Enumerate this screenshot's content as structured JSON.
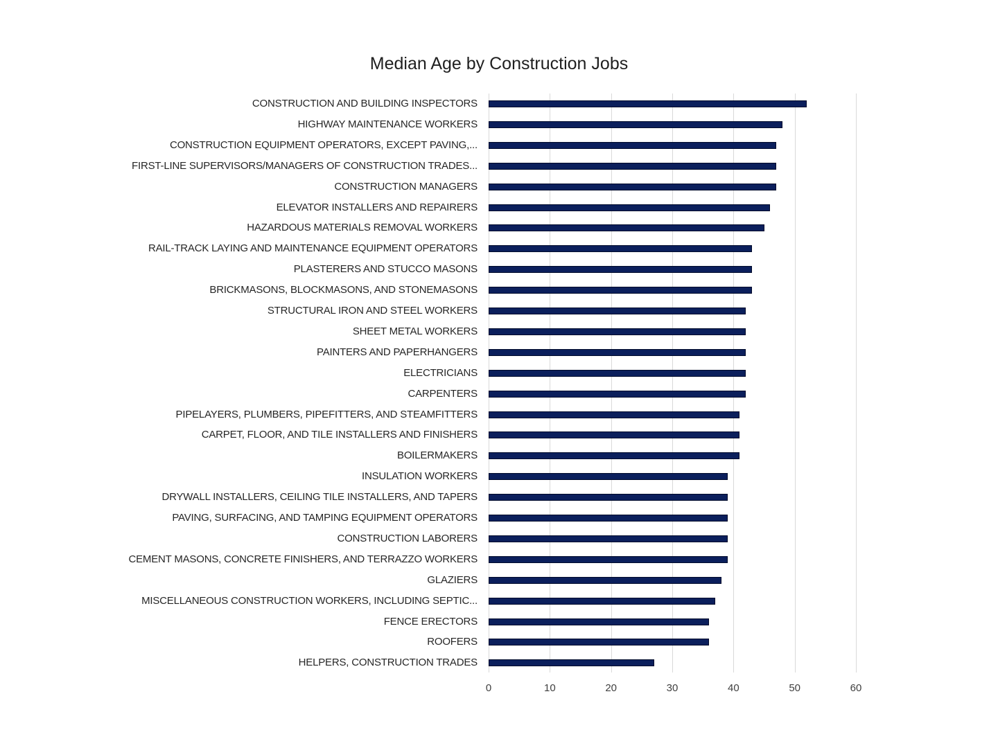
{
  "chart_data": {
    "type": "bar",
    "orientation": "horizontal",
    "title": "Median Age by Construction Jobs",
    "xlabel": "",
    "ylabel": "",
    "xlim": [
      0,
      60
    ],
    "x_ticks": [
      0,
      10,
      20,
      30,
      40,
      50,
      60
    ],
    "grid": "vertical",
    "legend": "none",
    "bar_color": "#0b1f5c",
    "categories": [
      "CONSTRUCTION AND BUILDING INSPECTORS",
      "HIGHWAY MAINTENANCE WORKERS",
      "CONSTRUCTION EQUIPMENT OPERATORS, EXCEPT PAVING,...",
      "FIRST-LINE SUPERVISORS/MANAGERS OF CONSTRUCTION TRADES...",
      "CONSTRUCTION MANAGERS",
      "ELEVATOR INSTALLERS AND REPAIRERS",
      "HAZARDOUS MATERIALS REMOVAL WORKERS",
      "RAIL-TRACK LAYING AND MAINTENANCE EQUIPMENT OPERATORS",
      "PLASTERERS AND STUCCO MASONS",
      "BRICKMASONS, BLOCKMASONS, AND STONEMASONS",
      "STRUCTURAL IRON AND STEEL WORKERS",
      "SHEET METAL WORKERS",
      "PAINTERS AND PAPERHANGERS",
      "ELECTRICIANS",
      "CARPENTERS",
      "PIPELAYERS, PLUMBERS, PIPEFITTERS, AND STEAMFITTERS",
      "CARPET, FLOOR, AND TILE INSTALLERS AND FINISHERS",
      "BOILERMAKERS",
      "INSULATION WORKERS",
      "DRYWALL INSTALLERS, CEILING TILE INSTALLERS, AND TAPERS",
      "PAVING, SURFACING, AND TAMPING EQUIPMENT OPERATORS",
      "CONSTRUCTION LABORERS",
      "CEMENT MASONS, CONCRETE FINISHERS, AND TERRAZZO WORKERS",
      "GLAZIERS",
      "MISCELLANEOUS CONSTRUCTION WORKERS, INCLUDING SEPTIC...",
      "FENCE ERECTORS",
      "ROOFERS",
      "HELPERS, CONSTRUCTION TRADES"
    ],
    "values": [
      52,
      48,
      47,
      47,
      47,
      46,
      45,
      43,
      43,
      43,
      42,
      42,
      42,
      42,
      42,
      41,
      41,
      41,
      39,
      39,
      39,
      39,
      39,
      38,
      37,
      36,
      36,
      27
    ]
  }
}
